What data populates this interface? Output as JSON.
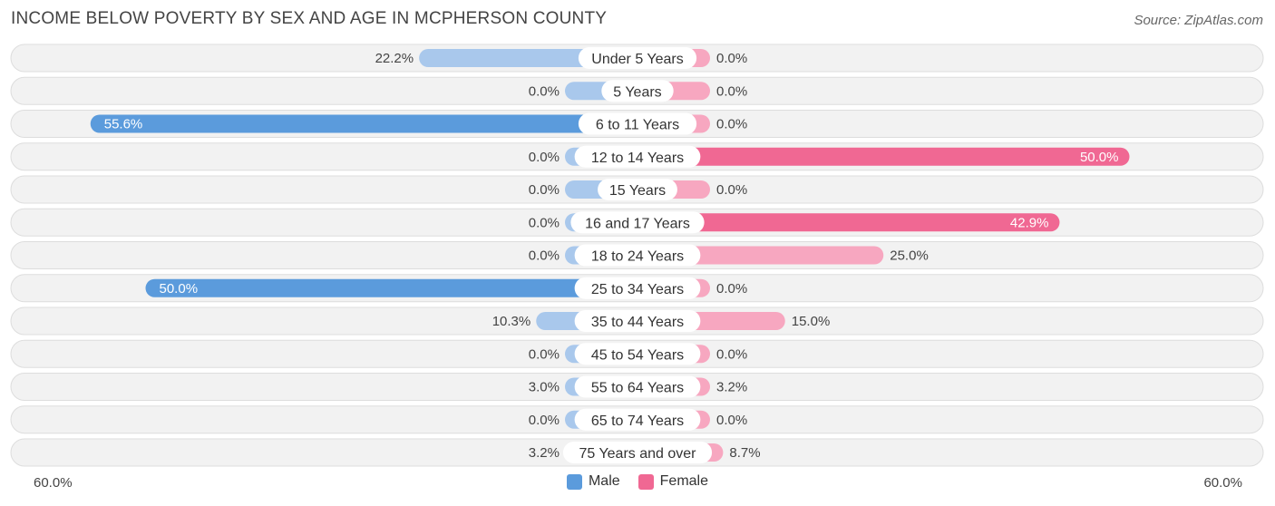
{
  "title": "INCOME BELOW POVERTY BY SEX AND AGE IN MCPHERSON COUNTY",
  "source": "Source: ZipAtlas.com",
  "colors": {
    "male_dark": "#5b9bdc",
    "male_light": "#a9c8ec",
    "female_dark": "#f06893",
    "female_light": "#f7a7c0",
    "row_bg": "#f2f2f2",
    "row_border": "#dddddd"
  },
  "chart_data": {
    "type": "bar",
    "orientation": "horizontal-diverging",
    "categories": [
      "Under 5 Years",
      "5 Years",
      "6 to 11 Years",
      "12 to 14 Years",
      "15 Years",
      "16 and 17 Years",
      "18 to 24 Years",
      "25 to 34 Years",
      "35 to 44 Years",
      "45 to 54 Years",
      "55 to 64 Years",
      "65 to 74 Years",
      "75 Years and over"
    ],
    "series": [
      {
        "name": "Male",
        "values": [
          22.2,
          0.0,
          55.6,
          0.0,
          0.0,
          0.0,
          0.0,
          50.0,
          10.3,
          0.0,
          3.0,
          0.0,
          3.2
        ],
        "labels": [
          "22.2%",
          "0.0%",
          "55.6%",
          "0.0%",
          "0.0%",
          "0.0%",
          "0.0%",
          "50.0%",
          "10.3%",
          "0.0%",
          "3.0%",
          "0.0%",
          "3.2%"
        ]
      },
      {
        "name": "Female",
        "values": [
          0.0,
          0.0,
          0.0,
          50.0,
          0.0,
          42.9,
          25.0,
          0.0,
          15.0,
          0.0,
          3.2,
          0.0,
          8.7
        ],
        "labels": [
          "0.0%",
          "0.0%",
          "0.0%",
          "50.0%",
          "0.0%",
          "42.9%",
          "25.0%",
          "0.0%",
          "15.0%",
          "0.0%",
          "3.2%",
          "0.0%",
          "8.7%"
        ]
      }
    ],
    "xlim": [
      -60,
      60
    ],
    "axis_left_label": "60.0%",
    "axis_right_label": "60.0%",
    "legend": [
      "Male",
      "Female"
    ],
    "legend_position": "bottom-center"
  }
}
